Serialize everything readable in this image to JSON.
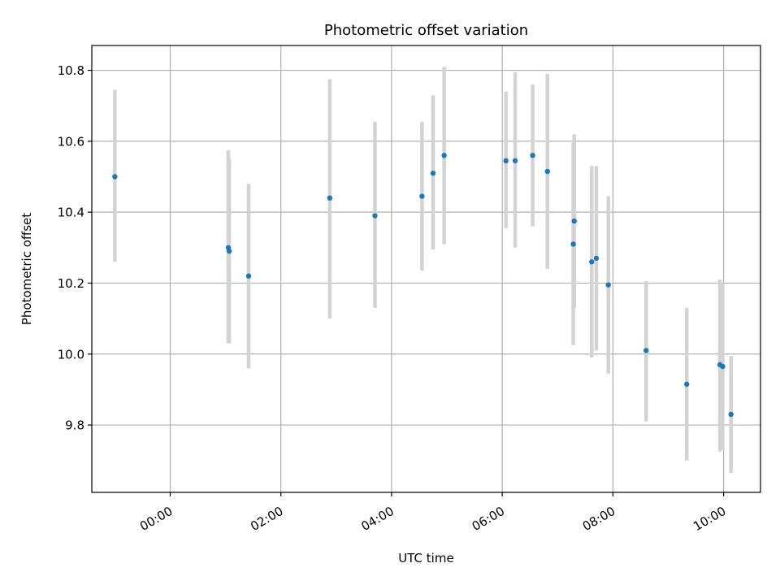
{
  "chart_data": {
    "type": "scatter",
    "title": "Photometric offset variation",
    "xlabel": "UTC time",
    "ylabel": "Photometric offset",
    "grid": true,
    "xlim": [
      "22:35",
      "10:40"
    ],
    "ylim": [
      9.61,
      10.87
    ],
    "xticks": [
      "00:00",
      "02:00",
      "04:00",
      "06:00",
      "08:00",
      "10:00"
    ],
    "yticks": [
      "9.8",
      "10.0",
      "10.2",
      "10.4",
      "10.6",
      "10.8"
    ],
    "colors": {
      "point": "#1f77b4",
      "errorbar": "#d3d3d3",
      "grid": "#b0b0b0"
    },
    "series": [
      {
        "points": [
          {
            "x": "23:00",
            "y": 10.5,
            "ylow": 10.26,
            "yhigh": 10.745
          },
          {
            "x": "01:03",
            "y": 10.3,
            "ylow": 10.03,
            "yhigh": 10.575
          },
          {
            "x": "01:04",
            "y": 10.29,
            "ylow": 10.03,
            "yhigh": 10.55
          },
          {
            "x": "01:25",
            "y": 10.22,
            "ylow": 9.96,
            "yhigh": 10.48
          },
          {
            "x": "02:53",
            "y": 10.44,
            "ylow": 10.1,
            "yhigh": 10.775
          },
          {
            "x": "03:42",
            "y": 10.39,
            "ylow": 10.13,
            "yhigh": 10.655
          },
          {
            "x": "04:33",
            "y": 10.445,
            "ylow": 10.235,
            "yhigh": 10.655
          },
          {
            "x": "04:45",
            "y": 10.51,
            "ylow": 10.295,
            "yhigh": 10.73
          },
          {
            "x": "04:57",
            "y": 10.56,
            "ylow": 10.31,
            "yhigh": 10.81
          },
          {
            "x": "06:04",
            "y": 10.545,
            "ylow": 10.355,
            "yhigh": 10.74
          },
          {
            "x": "06:14",
            "y": 10.545,
            "ylow": 10.3,
            "yhigh": 10.795
          },
          {
            "x": "06:33",
            "y": 10.56,
            "ylow": 10.36,
            "yhigh": 10.76
          },
          {
            "x": "06:49",
            "y": 10.515,
            "ylow": 10.24,
            "yhigh": 10.79
          },
          {
            "x": "07:17",
            "y": 10.31,
            "ylow": 10.025,
            "yhigh": 10.595
          },
          {
            "x": "07:18",
            "y": 10.375,
            "ylow": 10.13,
            "yhigh": 10.62
          },
          {
            "x": "07:37",
            "y": 10.26,
            "ylow": 9.99,
            "yhigh": 10.53
          },
          {
            "x": "07:42",
            "y": 10.27,
            "ylow": 10.01,
            "yhigh": 10.53
          },
          {
            "x": "07:55",
            "y": 10.195,
            "ylow": 9.945,
            "yhigh": 10.445
          },
          {
            "x": "08:36",
            "y": 10.01,
            "ylow": 9.81,
            "yhigh": 10.205
          },
          {
            "x": "09:20",
            "y": 9.915,
            "ylow": 9.7,
            "yhigh": 10.13
          },
          {
            "x": "09:56",
            "y": 9.97,
            "ylow": 9.725,
            "yhigh": 10.21
          },
          {
            "x": "09:59",
            "y": 9.965,
            "ylow": 9.73,
            "yhigh": 10.2
          },
          {
            "x": "10:08",
            "y": 9.83,
            "ylow": 9.665,
            "yhigh": 9.995
          }
        ]
      }
    ]
  }
}
